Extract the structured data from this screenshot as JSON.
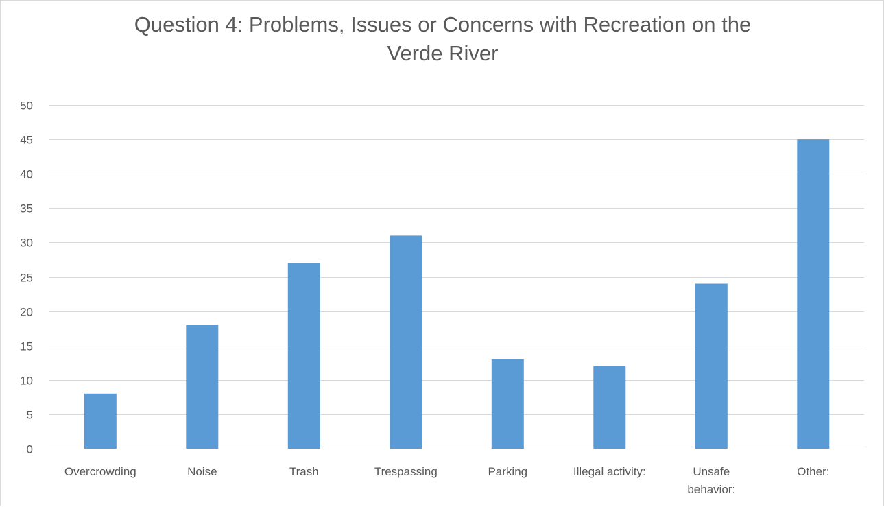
{
  "chart_data": {
    "type": "bar",
    "title_lines": [
      "Question 4:  Problems, Issues or Concerns with Recreation on the",
      "Verde River"
    ],
    "categories": [
      [
        "Overcrowding"
      ],
      [
        "Noise"
      ],
      [
        "Trash"
      ],
      [
        "Trespassing"
      ],
      [
        "Parking"
      ],
      [
        "Illegal activity:"
      ],
      [
        "Unsafe",
        "behavior:"
      ],
      [
        "Other:"
      ]
    ],
    "values": [
      8,
      18,
      27,
      31,
      13,
      12,
      24,
      45
    ],
    "ylim": [
      0,
      50
    ],
    "yticks": [
      0,
      5,
      10,
      15,
      20,
      25,
      30,
      35,
      40,
      45,
      50
    ],
    "xlabel": "",
    "ylabel": "",
    "grid": true,
    "legend": "none",
    "bar_color": "#5b9bd5",
    "grid_color": "#d9d9d9",
    "text_color": "#595959"
  }
}
